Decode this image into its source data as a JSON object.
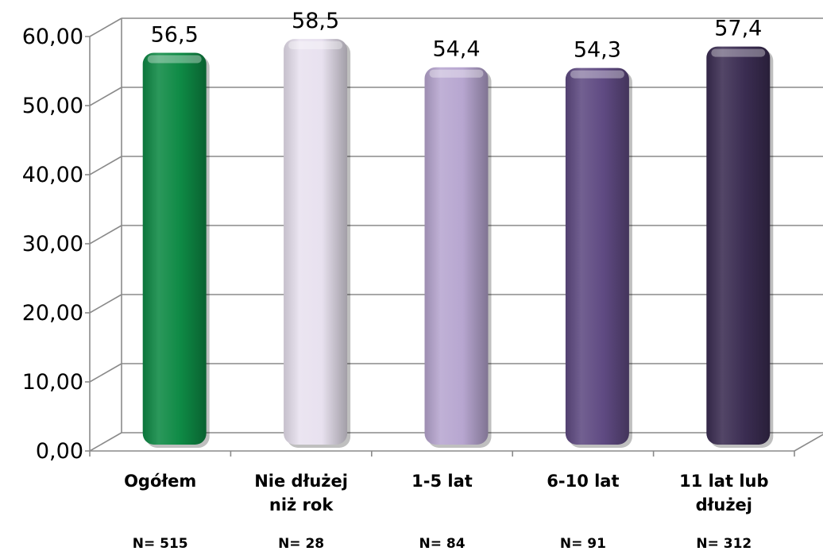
{
  "chart_data": {
    "type": "bar",
    "categories": [
      [
        "Ogółem"
      ],
      [
        "Nie dłużej",
        "niż rok"
      ],
      [
        "1-5 lat"
      ],
      [
        "6-10 lat"
      ],
      [
        "11 lat lub",
        "dłużej"
      ]
    ],
    "values": [
      56.5,
      58.5,
      54.4,
      54.3,
      57.4
    ],
    "value_labels": [
      "56,5",
      "58,5",
      "54,4",
      "54,3",
      "57,4"
    ],
    "n_labels": [
      "N= 515",
      "N= 28",
      "N= 84",
      "N= 91",
      "N= 312"
    ],
    "bar_colors": [
      "#0e8a45",
      "#e8e1ef",
      "#b7a6d0",
      "#5f4a82",
      "#3b2d52"
    ],
    "ylim": [
      0,
      60
    ],
    "yticks": [
      "0,00",
      "10,00",
      "20,00",
      "30,00",
      "40,00",
      "50,00",
      "60,00"
    ],
    "grid": true
  }
}
